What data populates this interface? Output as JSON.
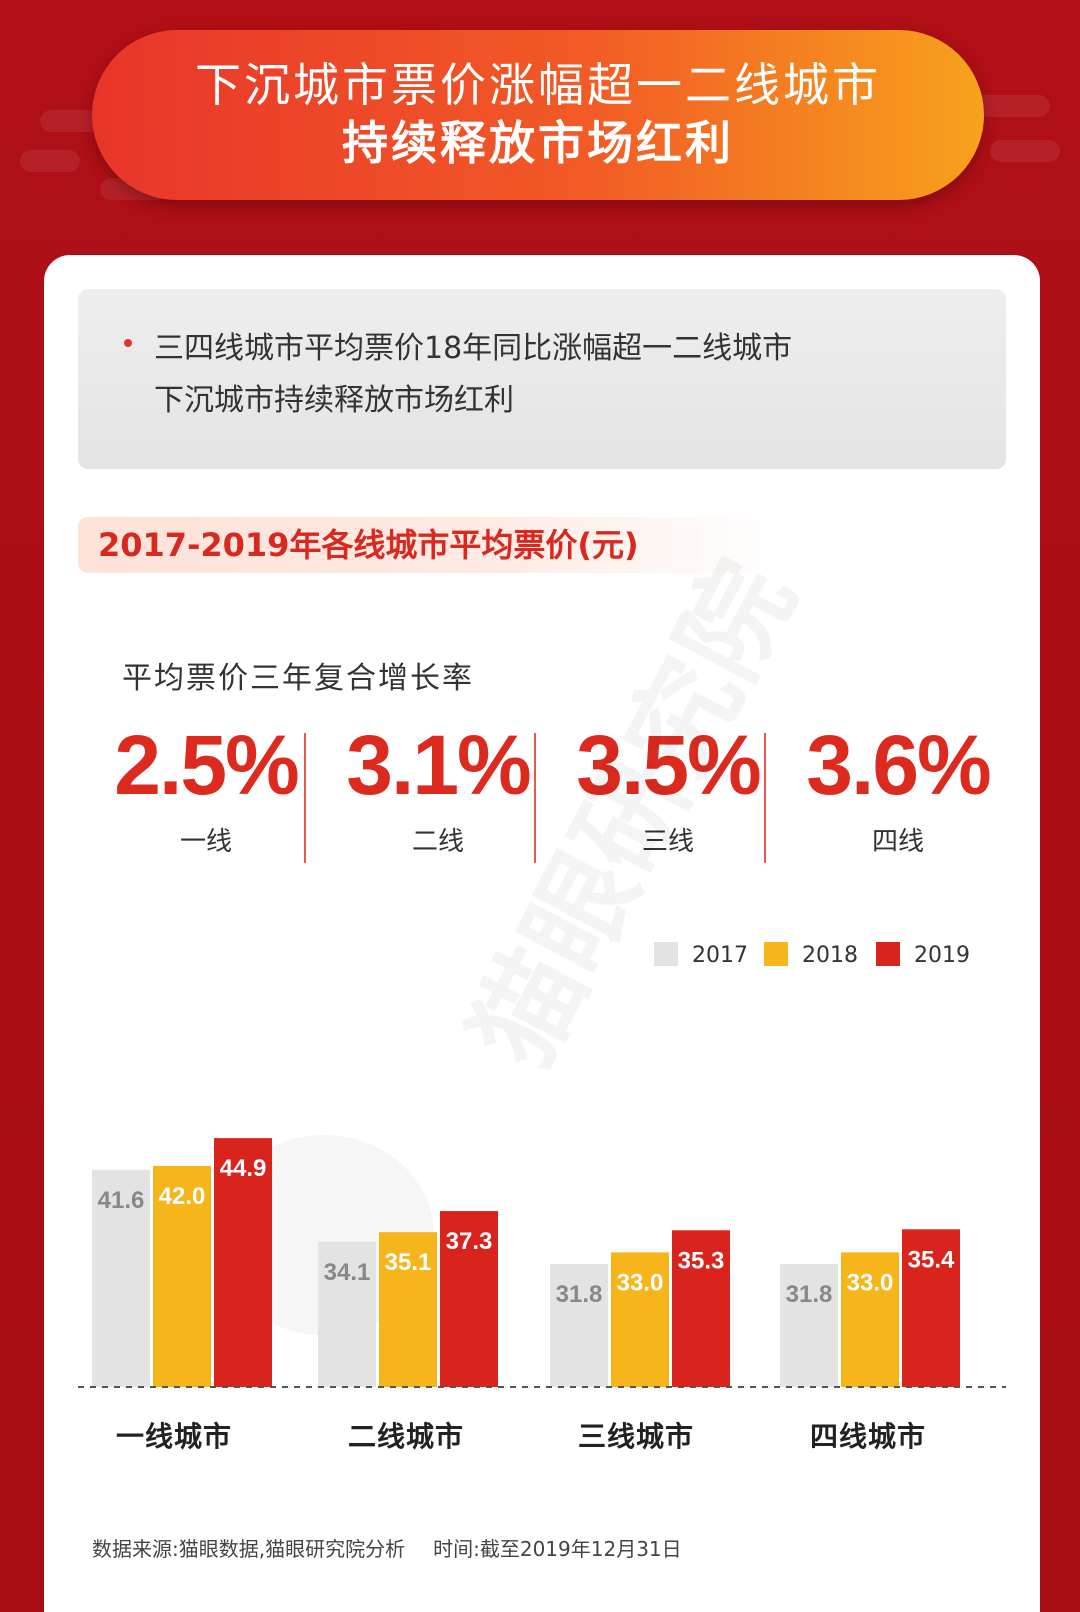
{
  "banner": {
    "line1": "下沉城市票价涨幅超一二线城市",
    "line2": "持续释放市场红利"
  },
  "summary": {
    "line1": "三四线城市平均票价18年同比涨幅超一二线城市",
    "line2": "下沉城市持续释放市场红利"
  },
  "subtitle": "2017-2019年各线城市平均票价(元)",
  "cagr": {
    "title": "平均票价三年复合增长率",
    "items": [
      {
        "value": "2.5%",
        "label": "一线"
      },
      {
        "value": "3.1%",
        "label": "二线"
      },
      {
        "value": "3.5%",
        "label": "三线"
      },
      {
        "value": "3.6%",
        "label": "四线"
      }
    ]
  },
  "watermark": "猫眼研究院",
  "colors": {
    "s2017": "#e3e3e3",
    "s2018": "#f7b51c",
    "s2019": "#d8241d",
    "accent": "#dd2a1f"
  },
  "chart_data": {
    "type": "bar",
    "categories": [
      "一线城市",
      "二线城市",
      "三线城市",
      "四线城市"
    ],
    "series": [
      {
        "name": "2017",
        "values": [
          41.6,
          34.1,
          31.8,
          31.8
        ]
      },
      {
        "name": "2018",
        "values": [
          42.0,
          35.1,
          33.0,
          33.0
        ]
      },
      {
        "name": "2019",
        "values": [
          44.9,
          37.3,
          35.3,
          35.4
        ]
      }
    ],
    "legend_position": "top-right",
    "grid": false
  },
  "footer": {
    "source": "数据来源:猫眼数据,猫眼研究院分析",
    "time": "时间:截至2019年12月31日"
  }
}
